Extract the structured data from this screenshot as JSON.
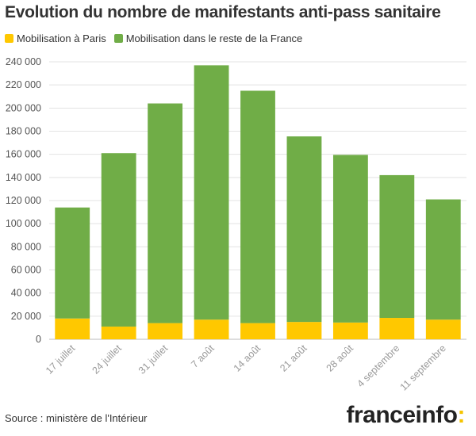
{
  "title": "Evolution du nombre de manifestants anti-pass sanitaire",
  "legend": [
    {
      "label": "Mobilisation à Paris",
      "color": "#ffc800"
    },
    {
      "label": "Mobilisation dans le reste de la France",
      "color": "#70ad47"
    }
  ],
  "source": "Source : ministère de l'Intérieur",
  "brand": {
    "name": "franceinfo",
    "suffix": ":"
  },
  "chart_data": {
    "type": "bar",
    "stacked": true,
    "categories": [
      "17 juillet",
      "24 juillet",
      "31 juillet",
      "7 août",
      "14 août",
      "21 août",
      "28 août",
      "4 septembre",
      "11 septembre"
    ],
    "series": [
      {
        "name": "Mobilisation à Paris",
        "color": "#ffc800",
        "values": [
          18000,
          11000,
          14000,
          17000,
          14000,
          15000,
          14500,
          18500,
          17000
        ]
      },
      {
        "name": "Mobilisation dans le reste de la France",
        "color": "#70ad47",
        "values": [
          96000,
          150000,
          190000,
          220000,
          201000,
          160500,
          145000,
          123500,
          104000
        ]
      }
    ],
    "ylim": [
      0,
      240000
    ],
    "yticks": [
      0,
      20000,
      40000,
      60000,
      80000,
      100000,
      120000,
      140000,
      160000,
      180000,
      200000,
      220000,
      240000
    ],
    "ytick_labels": [
      "0",
      "20 000",
      "40 000",
      "60 000",
      "80 000",
      "100 000",
      "120 000",
      "140 000",
      "160 000",
      "180 000",
      "200 000",
      "220 000",
      "240 000"
    ],
    "grid": true
  }
}
